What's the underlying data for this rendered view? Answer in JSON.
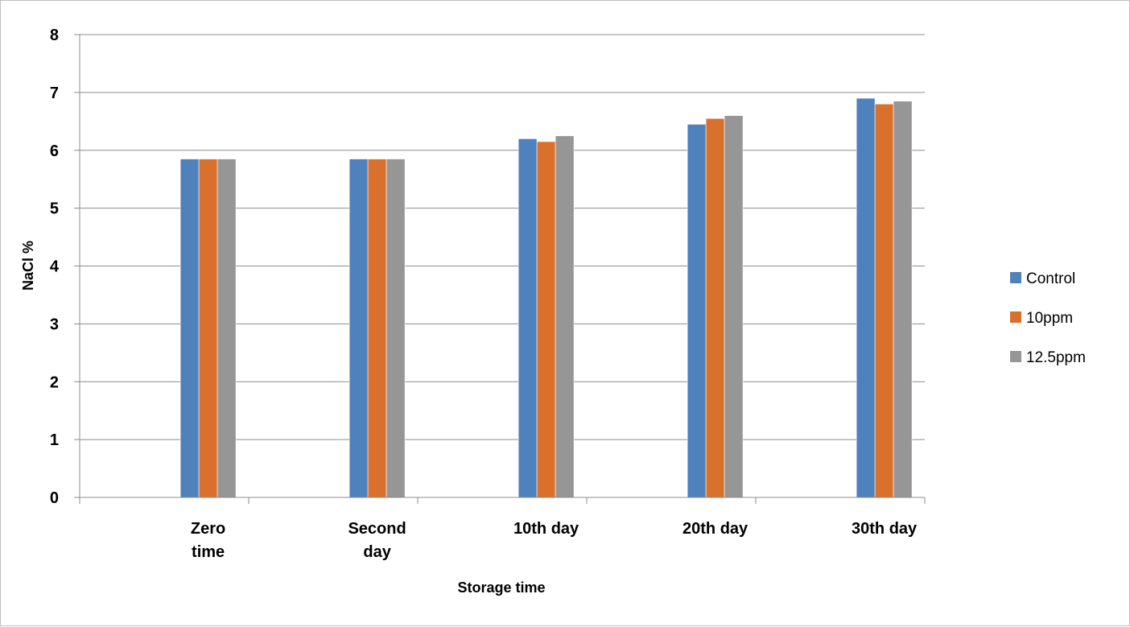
{
  "chart_data": {
    "type": "bar",
    "categories": [
      [
        "Zero",
        "time"
      ],
      [
        "Second",
        "day"
      ],
      [
        "10th day"
      ],
      [
        "20th day"
      ],
      [
        "30th day"
      ]
    ],
    "series": [
      {
        "name": "Control",
        "color": "#4f81bd",
        "values": [
          5.85,
          5.85,
          6.2,
          6.45,
          6.9
        ]
      },
      {
        "name": "10ppm",
        "color": "#d9702b",
        "values": [
          5.85,
          5.85,
          6.15,
          6.55,
          6.8
        ]
      },
      {
        "name": "12.5ppm",
        "color": "#969696",
        "values": [
          5.85,
          5.85,
          6.25,
          6.6,
          6.85
        ]
      }
    ],
    "xlabel": "Storage time",
    "ylabel": "NaCl %",
    "ylim": [
      0,
      8
    ],
    "yticks": [
      0,
      1,
      2,
      3,
      4,
      5,
      6,
      7,
      8
    ],
    "grid": true,
    "legend_position": "right"
  }
}
